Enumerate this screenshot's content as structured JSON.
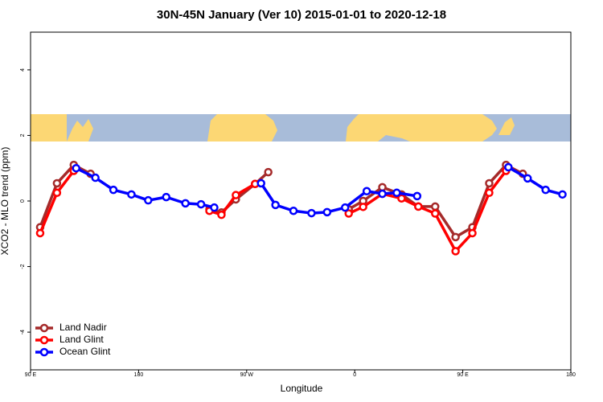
{
  "chart_data": {
    "type": "line",
    "title": "30N-45N January (Ver 10)   2015-01-01 to 2020-12-18",
    "x_label": "Longitude",
    "y_label": "XCO2 - MLO trend (ppm)",
    "xlim": [
      90,
      540
    ],
    "xticks": [
      {
        "value": 90,
        "label": "90 E"
      },
      {
        "value": 180,
        "label": "180"
      },
      {
        "value": 270,
        "label": "90 W"
      },
      {
        "value": 360,
        "label": "0"
      },
      {
        "value": 450,
        "label": "90 E"
      },
      {
        "value": 540,
        "label": "180"
      }
    ],
    "ylim": [
      -5.15,
      5.15
    ],
    "yticks": [
      -4,
      -2,
      0,
      2,
      4
    ],
    "legend": "bottom-left",
    "series": [
      {
        "name": "Land Nadir",
        "color": "#a52a2a",
        "x": [
          98,
          112,
          126,
          140,
          null,
          239,
          249,
          261,
          277,
          288,
          null,
          355,
          367,
          383,
          399,
          413,
          427,
          444,
          458,
          472,
          486,
          500
        ],
        "values": [
          -0.8,
          0.54,
          1.1,
          0.83,
          null,
          -0.25,
          -0.35,
          0.05,
          0.52,
          0.88,
          null,
          -0.25,
          0.0,
          0.42,
          0.2,
          -0.17,
          -0.17,
          -1.1,
          -0.8,
          0.54,
          1.1,
          0.83
        ]
      },
      {
        "name": "Land Glint",
        "color": "#ff0000",
        "x": [
          98,
          112,
          126,
          null,
          239,
          249,
          261,
          277,
          null,
          355,
          367,
          383,
          399,
          413,
          427,
          444,
          458,
          472,
          486
        ],
        "values": [
          -0.98,
          0.25,
          0.92,
          null,
          -0.3,
          -0.42,
          0.18,
          0.52,
          null,
          -0.38,
          -0.18,
          0.22,
          0.08,
          -0.17,
          -0.38,
          -1.53,
          -0.98,
          0.25,
          0.92
        ]
      },
      {
        "name": "Ocean Glint",
        "color": "#0000ff",
        "x": [
          128,
          144,
          159,
          174,
          188,
          203,
          219,
          232,
          243,
          null,
          282,
          294,
          309,
          324,
          337,
          352,
          370,
          383,
          395,
          412,
          null,
          488,
          504,
          519,
          533
        ],
        "values": [
          1.0,
          0.71,
          0.34,
          0.2,
          0.02,
          0.12,
          -0.07,
          -0.1,
          -0.2,
          null,
          0.54,
          -0.12,
          -0.3,
          -0.37,
          -0.34,
          -0.2,
          0.3,
          0.22,
          0.25,
          0.15,
          null,
          1.03,
          0.69,
          0.34,
          0.2
        ]
      }
    ]
  }
}
